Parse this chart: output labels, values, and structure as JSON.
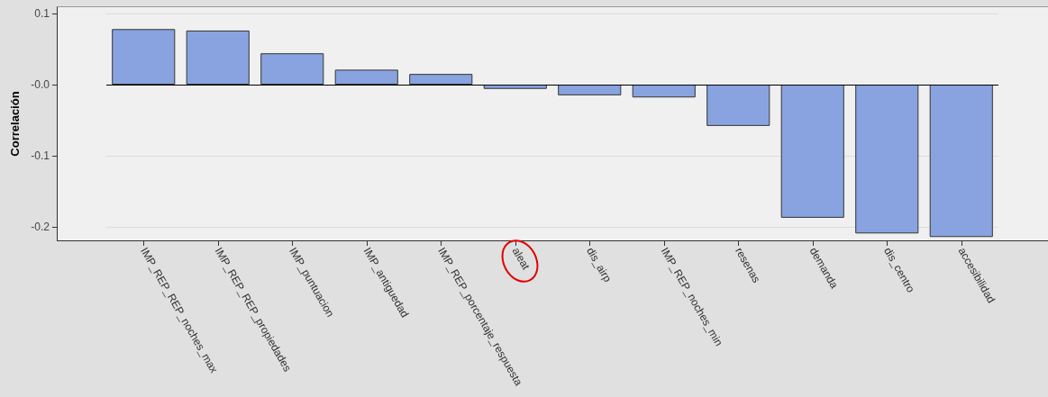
{
  "chart_data": {
    "type": "bar",
    "ylabel": "Correlación",
    "categories": [
      "IMP_REP_REP_noches_max",
      "IMP_REP_REP_propiedades",
      "IMP_puntuacion",
      "IMP_antiguedad",
      "IMP_REP_porcentaje_respuesta",
      "aleat",
      "dis_airp",
      "IMP_REP_noches_min",
      "resenas",
      "demanda",
      "dis_centro",
      "accesibilidad"
    ],
    "values": [
      0.078,
      0.076,
      0.044,
      0.021,
      0.015,
      -0.006,
      -0.015,
      -0.018,
      -0.058,
      -0.187,
      -0.209,
      -0.214
    ],
    "color": "#89a3e0",
    "ylim": [
      -0.22,
      0.11
    ],
    "yticks": [
      {
        "value": -0.2,
        "label": "-0.2"
      },
      {
        "value": -0.1,
        "label": "-0.1"
      },
      {
        "value": 0,
        "label": "-0.0"
      },
      {
        "value": 0.1,
        "label": "0.1"
      }
    ],
    "ref_lines": [
      {
        "axis": "y",
        "value": 0,
        "color": "#000000"
      }
    ],
    "grid": "y"
  }
}
